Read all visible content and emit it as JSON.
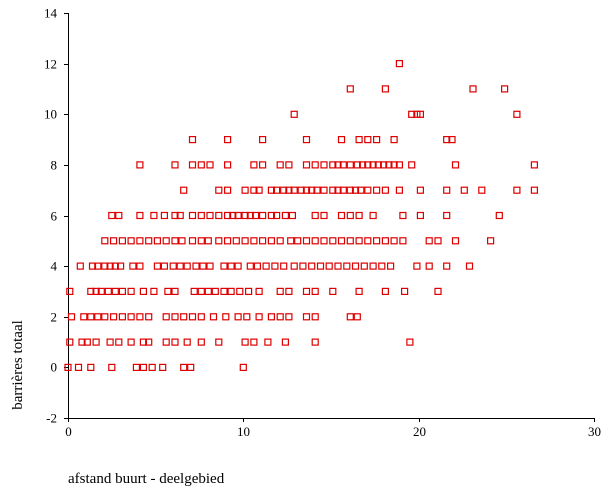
{
  "chart_data": {
    "type": "scatter",
    "title": "",
    "xlabel": "afstand buurt - deelgebied",
    "ylabel": "barrières totaal",
    "xlim": [
      0,
      30
    ],
    "ylim": [
      -2,
      14
    ],
    "x_ticks": [
      0,
      10,
      20,
      30
    ],
    "y_ticks": [
      -2,
      0,
      2,
      4,
      6,
      8,
      10,
      12,
      14
    ],
    "marker": "open-square",
    "color": "#dd0000",
    "grid": false,
    "legend": "none",
    "series": [
      {
        "points": [
          [
            0.0,
            0
          ],
          [
            0.6,
            0
          ],
          [
            1.3,
            0
          ],
          [
            2.5,
            0
          ],
          [
            3.9,
            0
          ],
          [
            4.3,
            0
          ],
          [
            4.8,
            0
          ],
          [
            5.4,
            0
          ],
          [
            6.6,
            0
          ],
          [
            7.0,
            0
          ],
          [
            10.0,
            0
          ],
          [
            0.1,
            1
          ],
          [
            0.8,
            1
          ],
          [
            1.1,
            1
          ],
          [
            1.6,
            1
          ],
          [
            2.4,
            1
          ],
          [
            2.9,
            1
          ],
          [
            3.6,
            1
          ],
          [
            4.3,
            1
          ],
          [
            4.6,
            1
          ],
          [
            5.6,
            1
          ],
          [
            6.1,
            1
          ],
          [
            6.8,
            1
          ],
          [
            7.6,
            1
          ],
          [
            8.6,
            1
          ],
          [
            10.1,
            1
          ],
          [
            10.6,
            1
          ],
          [
            11.4,
            1
          ],
          [
            12.4,
            1
          ],
          [
            14.1,
            1
          ],
          [
            19.5,
            1
          ],
          [
            0.2,
            2
          ],
          [
            0.9,
            2
          ],
          [
            1.3,
            2
          ],
          [
            1.7,
            2
          ],
          [
            2.1,
            2
          ],
          [
            2.6,
            2
          ],
          [
            3.1,
            2
          ],
          [
            3.6,
            2
          ],
          [
            4.1,
            2
          ],
          [
            4.6,
            2
          ],
          [
            5.6,
            2
          ],
          [
            6.1,
            2
          ],
          [
            6.6,
            2
          ],
          [
            7.1,
            2
          ],
          [
            7.6,
            2
          ],
          [
            8.3,
            2
          ],
          [
            9.0,
            2
          ],
          [
            9.7,
            2
          ],
          [
            10.2,
            2
          ],
          [
            10.9,
            2
          ],
          [
            11.6,
            2
          ],
          [
            12.1,
            2
          ],
          [
            12.6,
            2
          ],
          [
            13.6,
            2
          ],
          [
            14.1,
            2
          ],
          [
            16.1,
            2
          ],
          [
            16.5,
            2
          ],
          [
            0.1,
            3
          ],
          [
            1.3,
            3
          ],
          [
            1.6,
            3
          ],
          [
            1.9,
            3
          ],
          [
            2.3,
            3
          ],
          [
            2.7,
            3
          ],
          [
            3.1,
            3
          ],
          [
            3.6,
            3
          ],
          [
            4.3,
            3
          ],
          [
            4.9,
            3
          ],
          [
            5.7,
            3
          ],
          [
            6.1,
            3
          ],
          [
            7.2,
            3
          ],
          [
            7.6,
            3
          ],
          [
            8.0,
            3
          ],
          [
            8.4,
            3
          ],
          [
            8.9,
            3
          ],
          [
            9.3,
            3
          ],
          [
            9.8,
            3
          ],
          [
            10.3,
            3
          ],
          [
            10.9,
            3
          ],
          [
            12.1,
            3
          ],
          [
            12.6,
            3
          ],
          [
            13.6,
            3
          ],
          [
            14.1,
            3
          ],
          [
            15.1,
            3
          ],
          [
            16.6,
            3
          ],
          [
            18.1,
            3
          ],
          [
            19.2,
            3
          ],
          [
            21.1,
            3
          ],
          [
            0.7,
            4
          ],
          [
            1.4,
            4
          ],
          [
            1.7,
            4
          ],
          [
            2.1,
            4
          ],
          [
            2.4,
            4
          ],
          [
            2.7,
            4
          ],
          [
            3.0,
            4
          ],
          [
            3.7,
            4
          ],
          [
            4.1,
            4
          ],
          [
            5.1,
            4
          ],
          [
            5.5,
            4
          ],
          [
            6.0,
            4
          ],
          [
            6.4,
            4
          ],
          [
            6.8,
            4
          ],
          [
            7.3,
            4
          ],
          [
            7.7,
            4
          ],
          [
            8.1,
            4
          ],
          [
            8.9,
            4
          ],
          [
            9.3,
            4
          ],
          [
            9.7,
            4
          ],
          [
            10.4,
            4
          ],
          [
            10.8,
            4
          ],
          [
            11.3,
            4
          ],
          [
            11.8,
            4
          ],
          [
            12.3,
            4
          ],
          [
            12.9,
            4
          ],
          [
            13.4,
            4
          ],
          [
            13.9,
            4
          ],
          [
            14.4,
            4
          ],
          [
            14.9,
            4
          ],
          [
            15.4,
            4
          ],
          [
            15.9,
            4
          ],
          [
            16.4,
            4
          ],
          [
            16.9,
            4
          ],
          [
            17.4,
            4
          ],
          [
            17.9,
            4
          ],
          [
            18.4,
            4
          ],
          [
            19.9,
            4
          ],
          [
            20.6,
            4
          ],
          [
            21.6,
            4
          ],
          [
            22.9,
            4
          ],
          [
            2.1,
            5
          ],
          [
            2.6,
            5
          ],
          [
            3.1,
            5
          ],
          [
            3.6,
            5
          ],
          [
            4.1,
            5
          ],
          [
            4.6,
            5
          ],
          [
            5.1,
            5
          ],
          [
            5.6,
            5
          ],
          [
            6.1,
            5
          ],
          [
            6.5,
            5
          ],
          [
            7.1,
            5
          ],
          [
            7.6,
            5
          ],
          [
            8.0,
            5
          ],
          [
            8.6,
            5
          ],
          [
            9.1,
            5
          ],
          [
            9.6,
            5
          ],
          [
            10.1,
            5
          ],
          [
            10.6,
            5
          ],
          [
            11.1,
            5
          ],
          [
            11.6,
            5
          ],
          [
            12.1,
            5
          ],
          [
            12.7,
            5
          ],
          [
            13.1,
            5
          ],
          [
            13.6,
            5
          ],
          [
            14.1,
            5
          ],
          [
            14.6,
            5
          ],
          [
            15.1,
            5
          ],
          [
            15.6,
            5
          ],
          [
            16.1,
            5
          ],
          [
            16.6,
            5
          ],
          [
            17.1,
            5
          ],
          [
            17.6,
            5
          ],
          [
            18.1,
            5
          ],
          [
            18.6,
            5
          ],
          [
            19.1,
            5
          ],
          [
            20.6,
            5
          ],
          [
            21.1,
            5
          ],
          [
            22.1,
            5
          ],
          [
            24.1,
            5
          ],
          [
            2.5,
            6
          ],
          [
            2.9,
            6
          ],
          [
            4.1,
            6
          ],
          [
            4.9,
            6
          ],
          [
            5.5,
            6
          ],
          [
            6.1,
            6
          ],
          [
            6.4,
            6
          ],
          [
            7.1,
            6
          ],
          [
            7.6,
            6
          ],
          [
            8.1,
            6
          ],
          [
            8.6,
            6
          ],
          [
            9.1,
            6
          ],
          [
            9.4,
            6
          ],
          [
            9.7,
            6
          ],
          [
            10.1,
            6
          ],
          [
            10.4,
            6
          ],
          [
            10.7,
            6
          ],
          [
            11.1,
            6
          ],
          [
            11.6,
            6
          ],
          [
            11.9,
            6
          ],
          [
            12.4,
            6
          ],
          [
            12.8,
            6
          ],
          [
            14.1,
            6
          ],
          [
            14.6,
            6
          ],
          [
            15.6,
            6
          ],
          [
            16.1,
            6
          ],
          [
            16.6,
            6
          ],
          [
            17.4,
            6
          ],
          [
            19.1,
            6
          ],
          [
            20.1,
            6
          ],
          [
            21.6,
            6
          ],
          [
            24.6,
            6
          ],
          [
            6.6,
            7
          ],
          [
            8.6,
            7
          ],
          [
            9.1,
            7
          ],
          [
            10.1,
            7
          ],
          [
            10.6,
            7
          ],
          [
            10.9,
            7
          ],
          [
            11.6,
            7
          ],
          [
            11.9,
            7
          ],
          [
            12.3,
            7
          ],
          [
            12.6,
            7
          ],
          [
            12.9,
            7
          ],
          [
            13.3,
            7
          ],
          [
            13.6,
            7
          ],
          [
            13.9,
            7
          ],
          [
            14.2,
            7
          ],
          [
            14.6,
            7
          ],
          [
            15.1,
            7
          ],
          [
            15.4,
            7
          ],
          [
            15.7,
            7
          ],
          [
            16.1,
            7
          ],
          [
            16.4,
            7
          ],
          [
            16.7,
            7
          ],
          [
            17.1,
            7
          ],
          [
            17.6,
            7
          ],
          [
            18.1,
            7
          ],
          [
            18.9,
            7
          ],
          [
            20.1,
            7
          ],
          [
            21.6,
            7
          ],
          [
            22.6,
            7
          ],
          [
            23.6,
            7
          ],
          [
            25.6,
            7
          ],
          [
            26.6,
            7
          ],
          [
            4.1,
            8
          ],
          [
            6.1,
            8
          ],
          [
            7.1,
            8
          ],
          [
            7.6,
            8
          ],
          [
            8.1,
            8
          ],
          [
            9.1,
            8
          ],
          [
            10.6,
            8
          ],
          [
            11.1,
            8
          ],
          [
            12.1,
            8
          ],
          [
            12.6,
            8
          ],
          [
            13.6,
            8
          ],
          [
            14.1,
            8
          ],
          [
            14.6,
            8
          ],
          [
            15.1,
            8
          ],
          [
            15.4,
            8
          ],
          [
            15.7,
            8
          ],
          [
            16.1,
            8
          ],
          [
            16.5,
            8
          ],
          [
            16.8,
            8
          ],
          [
            17.1,
            8
          ],
          [
            17.4,
            8
          ],
          [
            17.7,
            8
          ],
          [
            18.0,
            8
          ],
          [
            18.3,
            8
          ],
          [
            18.6,
            8
          ],
          [
            18.9,
            8
          ],
          [
            19.6,
            8
          ],
          [
            22.1,
            8
          ],
          [
            26.6,
            8
          ],
          [
            7.1,
            9
          ],
          [
            9.1,
            9
          ],
          [
            11.1,
            9
          ],
          [
            13.6,
            9
          ],
          [
            15.6,
            9
          ],
          [
            16.6,
            9
          ],
          [
            17.1,
            9
          ],
          [
            17.6,
            9
          ],
          [
            18.6,
            9
          ],
          [
            21.6,
            9
          ],
          [
            21.9,
            9
          ],
          [
            12.9,
            10
          ],
          [
            19.6,
            10
          ],
          [
            19.9,
            10
          ],
          [
            20.1,
            10
          ],
          [
            25.6,
            10
          ],
          [
            16.1,
            11
          ],
          [
            18.1,
            11
          ],
          [
            23.1,
            11
          ],
          [
            24.9,
            11
          ],
          [
            18.9,
            12
          ]
        ]
      }
    ]
  }
}
